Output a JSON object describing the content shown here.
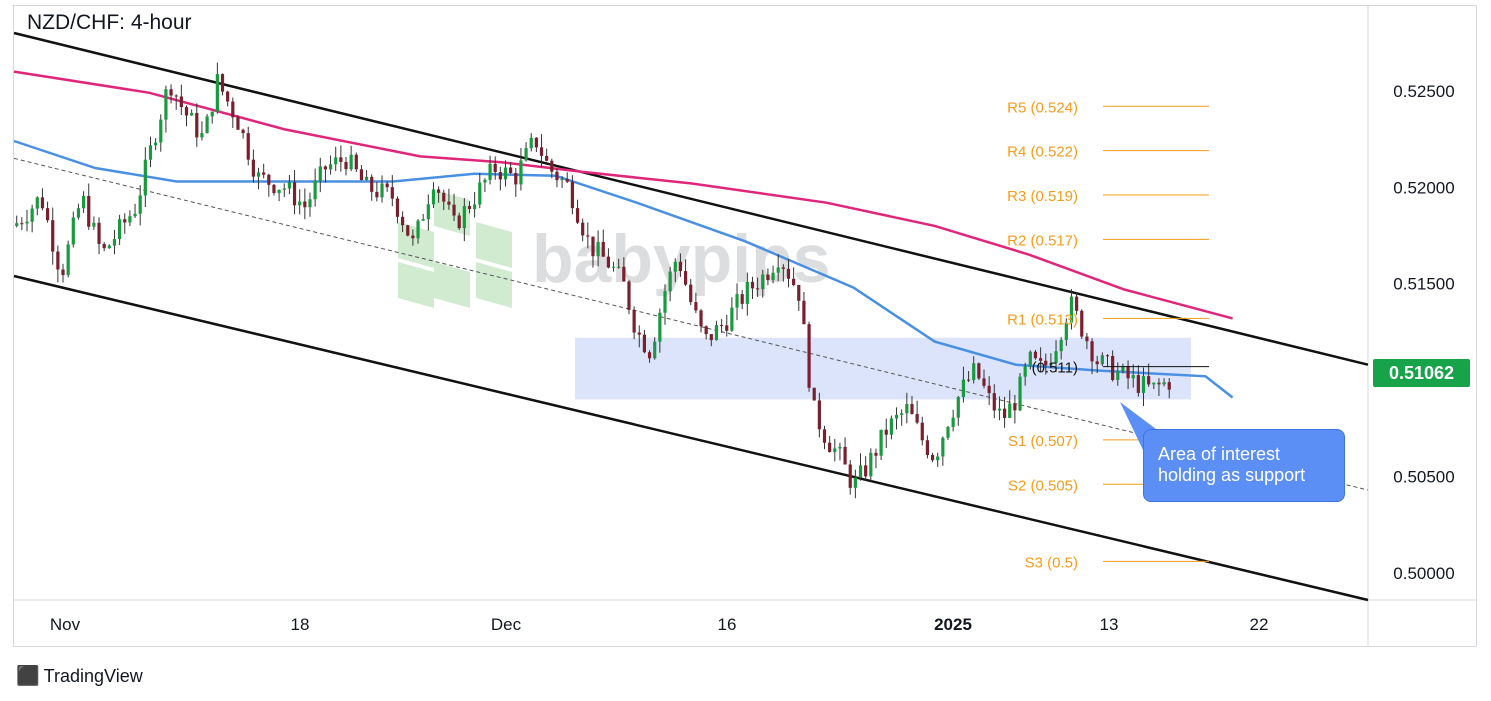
{
  "title": "NZD/CHF: 4-hour",
  "watermark": "babypips",
  "brand": {
    "logo_icon": "tradingview-logo-icon",
    "name": "TradingView"
  },
  "current_price": "0.51062",
  "callout": {
    "line1": "Area of interest",
    "line2": "holding as support"
  },
  "colors": {
    "accent_level": "#f59c1a",
    "ma_slow": "#e0267b",
    "ma_fast": "#4a90e2",
    "bull_candle": "#1a9a3f",
    "bear_candle": "#7a1f2e",
    "zone": "#dce4fb",
    "price_tag": "#17a34a",
    "callout": "#5b8ff5"
  },
  "chart_data": {
    "type": "candlestick",
    "title": "NZD/CHF: 4-hour",
    "x_ticks": [
      "Nov",
      "18",
      "Dec",
      "16",
      "2025",
      "13",
      "22"
    ],
    "y_ticks": [
      "0.52500",
      "0.52000",
      "0.51500",
      "0.51000",
      "0.50500",
      "0.50000"
    ],
    "ylim": [
      0.4986,
      0.5294
    ],
    "pivot_levels": [
      {
        "label": "R5 (0.524)",
        "value": 0.5242
      },
      {
        "label": "R4 (0.522)",
        "value": 0.5219
      },
      {
        "label": "R3 (0.519)",
        "value": 0.5196
      },
      {
        "label": "R2 (0.517)",
        "value": 0.5173
      },
      {
        "label": "R1 (0.513)",
        "value": 0.5132
      },
      {
        "label": "(0.511)",
        "value": 0.5107
      },
      {
        "label": "S1 (0.507)",
        "value": 0.5069
      },
      {
        "label": "S2 (0.505)",
        "value": 0.5046
      },
      {
        "label": "S3 (0.5)",
        "value": 0.5006
      }
    ],
    "support_zone": [
      0.509,
      0.5122
    ],
    "channel": {
      "upper": [
        [
          0.0,
          0.528
        ],
        [
          1.0,
          0.5108
        ]
      ],
      "lower": [
        [
          0.0,
          0.5154
        ],
        [
          1.0,
          0.4986
        ]
      ],
      "mid": [
        [
          0.0,
          0.5215
        ],
        [
          1.0,
          0.5043
        ]
      ]
    },
    "ma_slow": [
      [
        0.0,
        0.526
      ],
      [
        0.1,
        0.5249
      ],
      [
        0.2,
        0.523
      ],
      [
        0.3,
        0.5216
      ],
      [
        0.36,
        0.5213
      ],
      [
        0.42,
        0.5208
      ],
      [
        0.5,
        0.5202
      ],
      [
        0.6,
        0.5192
      ],
      [
        0.68,
        0.518
      ],
      [
        0.75,
        0.5165
      ],
      [
        0.82,
        0.5147
      ],
      [
        0.9,
        0.5132
      ]
    ],
    "ma_fast": [
      [
        0.0,
        0.5224
      ],
      [
        0.06,
        0.521
      ],
      [
        0.12,
        0.5203
      ],
      [
        0.2,
        0.5203
      ],
      [
        0.28,
        0.5203
      ],
      [
        0.34,
        0.5207
      ],
      [
        0.4,
        0.5206
      ],
      [
        0.46,
        0.5192
      ],
      [
        0.54,
        0.5172
      ],
      [
        0.62,
        0.5148
      ],
      [
        0.68,
        0.512
      ],
      [
        0.74,
        0.5108
      ],
      [
        0.8,
        0.5105
      ],
      [
        0.88,
        0.5102
      ],
      [
        0.9,
        0.5091
      ]
    ],
    "price_path": [
      [
        0.0,
        0.518
      ],
      [
        0.02,
        0.5195
      ],
      [
        0.035,
        0.5155
      ],
      [
        0.05,
        0.5195
      ],
      [
        0.065,
        0.5165
      ],
      [
        0.09,
        0.519
      ],
      [
        0.105,
        0.523
      ],
      [
        0.115,
        0.5255
      ],
      [
        0.125,
        0.524
      ],
      [
        0.14,
        0.5225
      ],
      [
        0.15,
        0.5255
      ],
      [
        0.165,
        0.5235
      ],
      [
        0.18,
        0.5205
      ],
      [
        0.2,
        0.52
      ],
      [
        0.215,
        0.519
      ],
      [
        0.23,
        0.521
      ],
      [
        0.245,
        0.5215
      ],
      [
        0.26,
        0.52
      ],
      [
        0.28,
        0.5195
      ],
      [
        0.295,
        0.517
      ],
      [
        0.31,
        0.5205
      ],
      [
        0.325,
        0.518
      ],
      [
        0.34,
        0.5195
      ],
      [
        0.355,
        0.521
      ],
      [
        0.37,
        0.5205
      ],
      [
        0.385,
        0.5225
      ],
      [
        0.395,
        0.521
      ],
      [
        0.41,
        0.52
      ],
      [
        0.425,
        0.517
      ],
      [
        0.44,
        0.516
      ],
      [
        0.45,
        0.515
      ],
      [
        0.46,
        0.5125
      ],
      [
        0.47,
        0.5115
      ],
      [
        0.48,
        0.5145
      ],
      [
        0.49,
        0.5165
      ],
      [
        0.5,
        0.514
      ],
      [
        0.51,
        0.512
      ],
      [
        0.525,
        0.513
      ],
      [
        0.54,
        0.5145
      ],
      [
        0.555,
        0.5155
      ],
      [
        0.565,
        0.5165
      ],
      [
        0.58,
        0.5145
      ],
      [
        0.59,
        0.5085
      ],
      [
        0.6,
        0.507
      ],
      [
        0.61,
        0.506
      ],
      [
        0.62,
        0.5045
      ],
      [
        0.63,
        0.5055
      ],
      [
        0.645,
        0.5075
      ],
      [
        0.66,
        0.5085
      ],
      [
        0.67,
        0.507
      ],
      [
        0.68,
        0.506
      ],
      [
        0.69,
        0.508
      ],
      [
        0.7,
        0.5095
      ],
      [
        0.71,
        0.5105
      ],
      [
        0.72,
        0.509
      ],
      [
        0.73,
        0.508
      ],
      [
        0.74,
        0.509
      ],
      [
        0.75,
        0.511
      ],
      [
        0.76,
        0.5105
      ],
      [
        0.77,
        0.512
      ],
      [
        0.78,
        0.514
      ],
      [
        0.79,
        0.5125
      ],
      [
        0.8,
        0.511
      ],
      [
        0.812,
        0.5105
      ],
      [
        0.825,
        0.51
      ],
      [
        0.84,
        0.5095
      ],
      [
        0.855,
        0.51
      ]
    ],
    "legend": "none",
    "grid": false
  }
}
